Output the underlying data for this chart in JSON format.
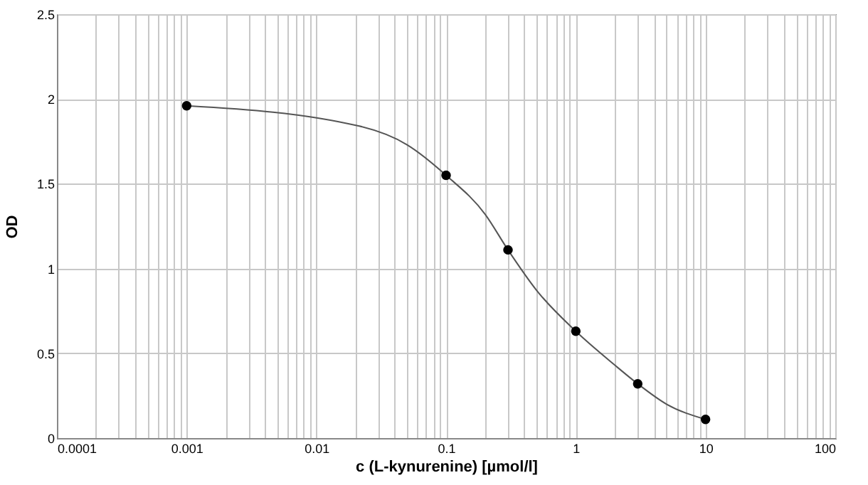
{
  "chart_data": {
    "type": "scatter",
    "xlabel": "c (L-kynurenine)  [µmol/l]",
    "ylabel": "OD",
    "log": "x",
    "grid": true,
    "marker": "circle",
    "xlim": [
      0.0001,
      100
    ],
    "ylim": [
      0,
      2.5
    ],
    "xticks": [
      0.0001,
      {
        "value": 0.0002,
        "label": null
      },
      {
        "value": 0.0003,
        "label": null
      },
      {
        "value": 0.0004,
        "label": null
      },
      {
        "value": 0.0005,
        "label": null
      },
      {
        "value": 0.0006,
        "label": null
      },
      {
        "value": 0.0007,
        "label": null
      },
      {
        "value": 0.0008,
        "label": null
      },
      {
        "value": 0.0009,
        "label": null
      },
      0.001,
      {
        "value": 0.002,
        "label": null
      },
      {
        "value": 0.003,
        "label": null
      },
      {
        "value": 0.004,
        "label": null
      },
      {
        "value": 0.005,
        "label": null
      },
      {
        "value": 0.006,
        "label": null
      },
      {
        "value": 0.007,
        "label": null
      },
      {
        "value": 0.008,
        "label": null
      },
      {
        "value": 0.009,
        "label": null
      },
      0.01,
      {
        "value": 0.02,
        "label": null
      },
      {
        "value": 0.03,
        "label": null
      },
      {
        "value": 0.04,
        "label": null
      },
      {
        "value": 0.05,
        "label": null
      },
      {
        "value": 0.06,
        "label": null
      },
      {
        "value": 0.07,
        "label": null
      },
      {
        "value": 0.08,
        "label": null
      },
      {
        "value": 0.09,
        "label": null
      },
      0.1,
      {
        "value": 0.2,
        "label": null
      },
      {
        "value": 0.3,
        "label": null
      },
      {
        "value": 0.4,
        "label": null
      },
      {
        "value": 0.5,
        "label": null
      },
      {
        "value": 0.6,
        "label": null
      },
      {
        "value": 0.7,
        "label": null
      },
      {
        "value": 0.8,
        "label": null
      },
      {
        "value": 0.9,
        "label": null
      },
      1,
      {
        "value": 2,
        "label": null
      },
      {
        "value": 3,
        "label": null
      },
      {
        "value": 4,
        "label": null
      },
      {
        "value": 5,
        "label": null
      },
      {
        "value": 6,
        "label": null
      },
      {
        "value": 7,
        "label": null
      },
      {
        "value": 8,
        "label": null
      },
      {
        "value": 9,
        "label": null
      },
      10,
      {
        "value": 20,
        "label": null
      },
      {
        "value": 30,
        "label": null
      },
      {
        "value": 40,
        "label": null
      },
      {
        "value": 50,
        "label": null
      },
      {
        "value": 60,
        "label": null
      },
      {
        "value": 70,
        "label": null
      },
      {
        "value": 80,
        "label": null
      },
      {
        "value": 90,
        "label": null
      },
      100
    ],
    "yticks": [
      0,
      0.5,
      1,
      1.5,
      2,
      2.5
    ],
    "series": [
      {
        "type": "line",
        "color": "#555555",
        "marker": "none",
        "x": [
          0.001,
          0.0214,
          0.05,
          0.1,
          0.2,
          0.3,
          0.5,
          1,
          2,
          3,
          5,
          10
        ],
        "values": [
          1.96,
          1.84,
          1.73,
          1.55,
          1.32,
          1.11,
          0.87,
          0.63,
          0.43,
          0.32,
          0.2,
          0.11
        ]
      },
      {
        "color": "#000000",
        "x": [
          0.001,
          0.1,
          0.3,
          1,
          3,
          10
        ],
        "values": [
          1.96,
          1.55,
          1.11,
          0.63,
          0.32,
          0.11
        ]
      }
    ]
  }
}
